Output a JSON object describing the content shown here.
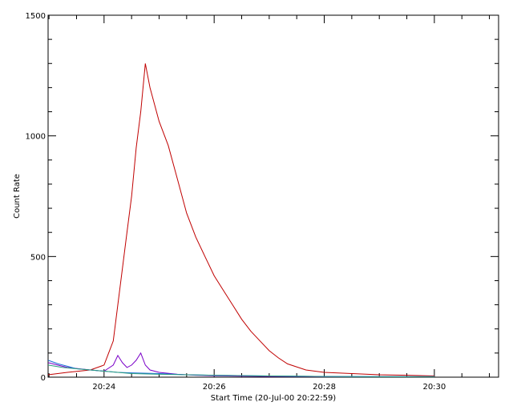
{
  "chart_data": {
    "type": "line",
    "title": "",
    "xlabel": "Start Time (20-Jul-00 20:22:59)",
    "ylabel": "Count Rate",
    "xlim": [
      "20:22:59",
      "20:31:10"
    ],
    "ylim": [
      0,
      1500
    ],
    "x_ticks": [
      "20:24",
      "20:26",
      "20:28",
      "20:30"
    ],
    "y_ticks": [
      0,
      500,
      1000,
      1500
    ],
    "grid": false,
    "legend": "none",
    "series": [
      {
        "color": "#c00000",
        "x": [
          "20:22:59",
          "20:23:20",
          "20:23:45",
          "20:24:00",
          "20:24:05",
          "20:24:10",
          "20:24:15",
          "20:24:20",
          "20:24:25",
          "20:24:30",
          "20:24:35",
          "20:24:40",
          "20:24:45",
          "20:24:50",
          "20:24:55",
          "20:25:00",
          "20:25:10",
          "20:25:20",
          "20:25:30",
          "20:25:40",
          "20:25:50",
          "20:26:00",
          "20:26:10",
          "20:26:20",
          "20:26:30",
          "20:26:40",
          "20:26:50",
          "20:27:00",
          "20:27:10",
          "20:27:20",
          "20:27:40",
          "20:28:00",
          "20:28:30",
          "20:29:00",
          "20:29:30",
          "20:30:00"
        ],
        "values": [
          10,
          20,
          30,
          50,
          100,
          150,
          300,
          450,
          600,
          750,
          950,
          1100,
          1300,
          1200,
          1130,
          1060,
          960,
          820,
          680,
          580,
          500,
          420,
          360,
          300,
          240,
          190,
          150,
          110,
          80,
          55,
          30,
          20,
          15,
          10,
          8,
          5
        ]
      },
      {
        "color": "#7a00c8",
        "x": [
          "20:22:59",
          "20:23:20",
          "20:23:45",
          "20:24:00",
          "20:24:10",
          "20:24:15",
          "20:24:20",
          "20:24:25",
          "20:24:30",
          "20:24:35",
          "20:24:40",
          "20:24:45",
          "20:24:50",
          "20:25:00",
          "20:25:20",
          "20:25:40",
          "20:26:00",
          "20:26:30",
          "20:27:00",
          "20:28:00",
          "20:29:00",
          "20:30:00"
        ],
        "values": [
          60,
          40,
          30,
          25,
          50,
          90,
          60,
          40,
          50,
          70,
          100,
          50,
          30,
          20,
          12,
          8,
          6,
          4,
          3,
          2,
          2,
          2
        ]
      },
      {
        "color": "#1a6fd6",
        "x": [
          "20:22:59",
          "20:23:10",
          "20:23:20",
          "20:23:30",
          "20:23:45",
          "20:24:00",
          "20:24:15",
          "20:24:30",
          "20:25:00",
          "20:25:30",
          "20:26:00",
          "20:27:00",
          "20:28:00",
          "20:29:00",
          "20:30:00"
        ],
        "values": [
          70,
          55,
          45,
          35,
          30,
          25,
          20,
          18,
          15,
          10,
          8,
          5,
          3,
          2,
          2
        ]
      },
      {
        "color": "#2a9d7f",
        "x": [
          "20:22:59",
          "20:23:15",
          "20:23:30",
          "20:23:45",
          "20:24:00",
          "20:24:15",
          "20:24:30",
          "20:25:00",
          "20:25:30",
          "20:26:00",
          "20:27:00",
          "20:28:00",
          "20:29:00",
          "20:30:00"
        ],
        "values": [
          50,
          40,
          35,
          30,
          25,
          20,
          15,
          12,
          10,
          8,
          5,
          3,
          2,
          2
        ]
      }
    ]
  }
}
